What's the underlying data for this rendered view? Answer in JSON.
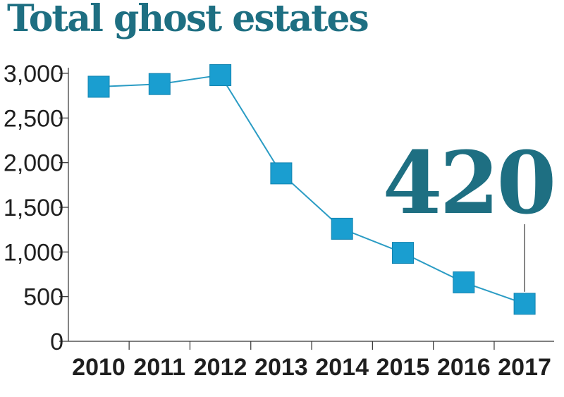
{
  "title": "Total ghost estates",
  "chart_data": {
    "type": "line",
    "title": "Total ghost estates",
    "xlabel": "",
    "ylabel": "",
    "categories": [
      "2010",
      "2011",
      "2012",
      "2013",
      "2014",
      "2015",
      "2016",
      "2017"
    ],
    "values": [
      2850,
      2880,
      2980,
      1880,
      1260,
      990,
      660,
      420
    ],
    "ylim": [
      0,
      3000
    ],
    "yticks": [
      0,
      500,
      1000,
      1500,
      2000,
      2500,
      3000
    ],
    "ytick_labels": [
      "0",
      "500",
      "1,000",
      "1,500",
      "2,000",
      "2,500",
      "3,000"
    ],
    "grid": false,
    "line_color": "#2b9cc4",
    "marker_color": "#1a9ed0",
    "callout": {
      "text": "420",
      "category": "2017",
      "color": "#1e6f82"
    }
  }
}
